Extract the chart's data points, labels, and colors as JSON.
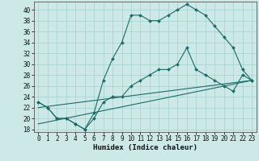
{
  "xlabel": "Humidex (Indice chaleur)",
  "xlim": [
    -0.5,
    23.5
  ],
  "ylim": [
    17.5,
    41.5
  ],
  "yticks": [
    18,
    20,
    22,
    24,
    26,
    28,
    30,
    32,
    34,
    36,
    38,
    40
  ],
  "xticks": [
    0,
    1,
    2,
    3,
    4,
    5,
    6,
    7,
    8,
    9,
    10,
    11,
    12,
    13,
    14,
    15,
    16,
    17,
    18,
    19,
    20,
    21,
    22,
    23
  ],
  "bg_color": "#cce9e7",
  "grid_color": "#aad4d0",
  "line_color": "#1a6b68",
  "series1_x": [
    0,
    1,
    2,
    3,
    4,
    5,
    6,
    7,
    8,
    9,
    10,
    11,
    12,
    13,
    14,
    15,
    16,
    17,
    18,
    19,
    20,
    21,
    22,
    23
  ],
  "series1_y": [
    23,
    22,
    20,
    20,
    19,
    18,
    21,
    27,
    31,
    34,
    39,
    39,
    38,
    38,
    39,
    40,
    41,
    40,
    39,
    37,
    35,
    33,
    29,
    27
  ],
  "series2_x": [
    0,
    1,
    2,
    3,
    4,
    5,
    6,
    7,
    8,
    9,
    10,
    11,
    12,
    13,
    14,
    15,
    16,
    17,
    18,
    19,
    20,
    21,
    22,
    23
  ],
  "series2_y": [
    23,
    22,
    20,
    20,
    19,
    18,
    20,
    23,
    24,
    24,
    26,
    27,
    28,
    29,
    29,
    30,
    33,
    29,
    28,
    27,
    26,
    25,
    28,
    27
  ],
  "series3_x": [
    0,
    23
  ],
  "series3_y": [
    22,
    27
  ],
  "series4_x": [
    0,
    23
  ],
  "series4_y": [
    19,
    27
  ],
  "markersize": 2.0,
  "linewidth": 0.8
}
